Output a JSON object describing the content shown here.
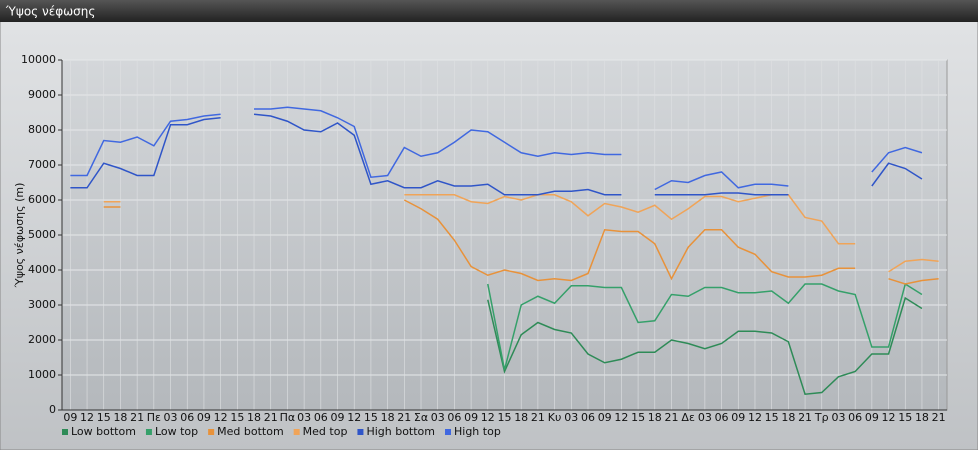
{
  "window": {
    "title": "Ύψος νέφωσης"
  },
  "chart_data": {
    "type": "line",
    "y_label": "Ύψος νέφωσης (m)",
    "categories": [
      "09",
      "12",
      "15",
      "18",
      "21",
      "Πε",
      "03",
      "06",
      "09",
      "12",
      "15",
      "18",
      "21",
      "Πα",
      "03",
      "06",
      "09",
      "12",
      "15",
      "18",
      "21",
      "Σα",
      "03",
      "06",
      "09",
      "12",
      "15",
      "18",
      "21",
      "Κυ",
      "03",
      "06",
      "09",
      "12",
      "15",
      "18",
      "21",
      "Δε",
      "03",
      "06",
      "09",
      "12",
      "15",
      "18",
      "21",
      "Τρ",
      "03",
      "06",
      "09",
      "12",
      "15",
      "18",
      "21"
    ],
    "ylim": [
      0,
      10000
    ],
    "yticks": [
      0,
      1000,
      2000,
      3000,
      4000,
      5000,
      6000,
      7000,
      8000,
      9000,
      10000
    ],
    "grid": true,
    "legend": "bottom-left",
    "series": [
      {
        "name": "Low bottom",
        "color": "#2e8b57",
        "values": [
          null,
          null,
          null,
          null,
          null,
          null,
          null,
          null,
          null,
          null,
          null,
          null,
          null,
          null,
          null,
          null,
          null,
          null,
          null,
          null,
          null,
          null,
          null,
          null,
          null,
          3150,
          1100,
          2150,
          2500,
          2300,
          2200,
          1600,
          1350,
          1450,
          1650,
          1650,
          2000,
          1900,
          1750,
          1900,
          2250,
          2250,
          2200,
          1950,
          450,
          500,
          950,
          1100,
          1600,
          1600,
          3200,
          2900,
          null
        ]
      },
      {
        "name": "Low top",
        "color": "#35a06a",
        "values": [
          null,
          null,
          null,
          null,
          null,
          null,
          null,
          null,
          null,
          null,
          null,
          null,
          null,
          null,
          null,
          null,
          null,
          null,
          null,
          null,
          null,
          null,
          null,
          null,
          null,
          3600,
          1150,
          3000,
          3250,
          3050,
          3550,
          3550,
          3500,
          3500,
          2500,
          2550,
          3300,
          3250,
          3500,
          3500,
          3350,
          3350,
          3400,
          3050,
          3600,
          3600,
          3400,
          3300,
          1800,
          1800,
          3600,
          3300,
          null
        ]
      },
      {
        "name": "Med bottom",
        "color": "#e8923a",
        "values": [
          null,
          null,
          5800,
          5800,
          null,
          null,
          null,
          null,
          null,
          null,
          null,
          null,
          null,
          null,
          null,
          null,
          null,
          null,
          null,
          null,
          6000,
          5750,
          5450,
          4850,
          4100,
          3850,
          4000,
          3900,
          3700,
          3750,
          3700,
          3900,
          5150,
          5100,
          5100,
          4750,
          3750,
          4650,
          5150,
          5150,
          4650,
          4450,
          3950,
          3800,
          3800,
          3850,
          4050,
          4050,
          null,
          3750,
          3600,
          3700,
          3750
        ]
      },
      {
        "name": "Med top",
        "color": "#f0a458",
        "values": [
          null,
          null,
          5950,
          5950,
          null,
          null,
          null,
          null,
          null,
          null,
          null,
          null,
          null,
          null,
          null,
          null,
          null,
          null,
          null,
          null,
          6150,
          6150,
          6150,
          6150,
          5950,
          5900,
          6100,
          6000,
          6150,
          6150,
          5950,
          5550,
          5900,
          5800,
          5650,
          5850,
          5450,
          5750,
          6100,
          6100,
          5950,
          6050,
          6150,
          6150,
          5500,
          5400,
          4750,
          4750,
          null,
          3950,
          4250,
          4300,
          4250
        ]
      },
      {
        "name": "High bottom",
        "color": "#2f55c8",
        "values": [
          6350,
          6350,
          7050,
          6900,
          6700,
          6700,
          8150,
          8150,
          8300,
          8350,
          null,
          8450,
          8400,
          8250,
          8000,
          7950,
          8200,
          7850,
          6450,
          6550,
          6350,
          6350,
          6550,
          6400,
          6400,
          6450,
          6150,
          6150,
          6150,
          6250,
          6250,
          6300,
          6150,
          6150,
          null,
          6150,
          6150,
          6150,
          6150,
          6200,
          6200,
          6150,
          6150,
          6150,
          null,
          null,
          null,
          null,
          6400,
          7050,
          6900,
          6600,
          null
        ]
      },
      {
        "name": "High top",
        "color": "#4068e0",
        "values": [
          6700,
          6700,
          7700,
          7650,
          7800,
          7550,
          8250,
          8300,
          8400,
          8450,
          null,
          8600,
          8600,
          8650,
          8600,
          8550,
          8350,
          8100,
          6650,
          6700,
          7500,
          7250,
          7350,
          7650,
          8000,
          7950,
          7650,
          7350,
          7250,
          7350,
          7300,
          7350,
          7300,
          7300,
          null,
          6300,
          6550,
          6500,
          6700,
          6800,
          6350,
          6450,
          6450,
          6400,
          null,
          null,
          null,
          null,
          6800,
          7350,
          7500,
          7350,
          null
        ]
      }
    ]
  }
}
